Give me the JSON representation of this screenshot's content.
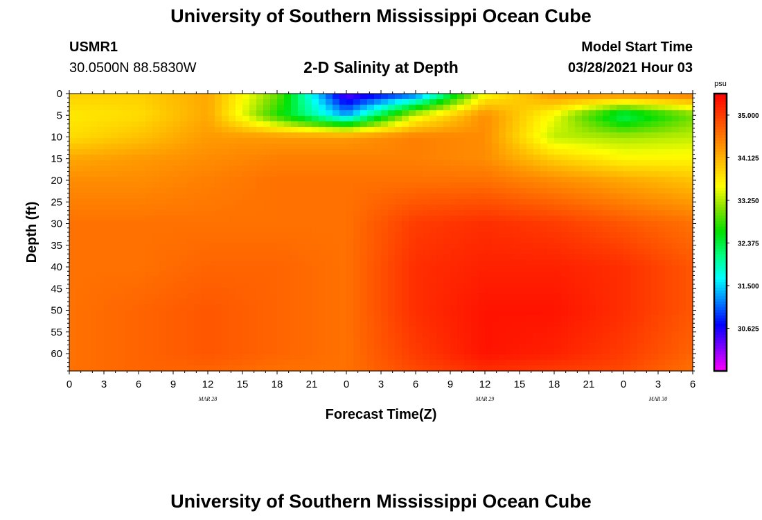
{
  "page": {
    "title_top": "University of Southern Mississippi Ocean Cube",
    "title_bottom": "University of Southern Mississippi Ocean Cube",
    "station_id": "USMR1",
    "station_coords": "30.0500N  88.5830W",
    "plot_title": "2-D Salinity at Depth",
    "model_start_label": "Model Start Time",
    "model_start_value": "03/28/2021 Hour 03"
  },
  "chart_data": {
    "type": "heatmap",
    "title": "2-D Salinity at Depth",
    "xlabel": "Forecast Time(Z)",
    "ylabel": "Depth (ft)",
    "x_ticks": [
      "0",
      "3",
      "6",
      "9",
      "12",
      "15",
      "18",
      "21",
      "0",
      "3",
      "6",
      "9",
      "12",
      "15",
      "18",
      "21",
      "0",
      "3",
      "6"
    ],
    "x_hours": [
      0,
      3,
      6,
      9,
      12,
      15,
      18,
      21,
      24,
      27,
      30,
      33,
      36,
      39,
      42,
      45,
      48,
      51,
      54
    ],
    "date_labels": [
      {
        "text": "MAR 28",
        "hour": 12
      },
      {
        "text": "MAR 29",
        "hour": 36
      },
      {
        "text": "MAR 30",
        "hour": 51
      }
    ],
    "y_ticks": [
      0,
      5,
      10,
      15,
      20,
      25,
      30,
      35,
      40,
      45,
      50,
      55,
      60
    ],
    "ylim": [
      0,
      64
    ],
    "xlim": [
      0,
      54
    ],
    "colorbar": {
      "unit": "psu",
      "min": 29.75,
      "max": 35.44,
      "ticks": [
        "35.000",
        "34.125",
        "33.250",
        "32.375",
        "31.500",
        "30.625"
      ],
      "tick_values": [
        35.0,
        34.125,
        33.25,
        32.375,
        31.5,
        30.625
      ],
      "colors": [
        "#ff00ff",
        "#8000ff",
        "#0000ff",
        "#0080ff",
        "#00ffff",
        "#00ff80",
        "#00e000",
        "#80e000",
        "#ffff00",
        "#ffc000",
        "#ff8000",
        "#ff4000",
        "#ff0000"
      ]
    },
    "grid_hours": [
      0,
      6,
      12,
      18,
      24,
      30,
      36,
      42,
      48,
      54
    ],
    "grid_depths": [
      0,
      5,
      10,
      15,
      20,
      30,
      40,
      50,
      60,
      64
    ],
    "values": [
      [
        33.9,
        33.9,
        34.2,
        33.0,
        30.3,
        31.0,
        33.5,
        34.4,
        34.5,
        34.6
      ],
      [
        33.7,
        33.8,
        34.2,
        32.7,
        31.3,
        33.4,
        34.4,
        33.5,
        32.2,
        33.0
      ],
      [
        33.8,
        34.0,
        34.3,
        34.3,
        34.3,
        34.5,
        34.4,
        33.3,
        33.2,
        33.3
      ],
      [
        34.2,
        34.3,
        34.4,
        34.5,
        34.5,
        34.5,
        34.4,
        33.9,
        33.6,
        33.6
      ],
      [
        34.4,
        34.4,
        34.5,
        34.6,
        34.6,
        34.6,
        34.6,
        34.4,
        34.2,
        34.0
      ],
      [
        34.6,
        34.6,
        34.6,
        34.6,
        34.6,
        35.0,
        35.1,
        35.0,
        34.8,
        34.6
      ],
      [
        34.6,
        34.6,
        34.7,
        34.7,
        34.6,
        35.1,
        35.2,
        35.2,
        35.1,
        34.8
      ],
      [
        34.6,
        34.7,
        34.8,
        34.7,
        34.6,
        35.1,
        35.3,
        35.3,
        35.1,
        34.8
      ],
      [
        34.6,
        34.7,
        34.8,
        34.7,
        34.6,
        35.0,
        35.3,
        35.2,
        35.0,
        34.7
      ],
      [
        34.6,
        34.7,
        34.7,
        34.6,
        34.6,
        34.9,
        35.1,
        35.0,
        34.9,
        34.6
      ]
    ]
  }
}
